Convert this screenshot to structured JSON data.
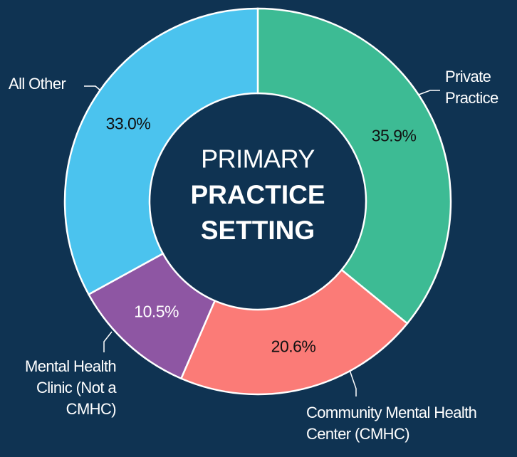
{
  "chart_data": {
    "type": "donut",
    "title_lines": [
      "PRIMARY",
      "PRACTICE",
      "SETTING"
    ],
    "categories": [
      "Private Practice",
      "Community Mental Health Center (CMHC)",
      "Mental Health Clinic (Not a CMHC)",
      "All Other"
    ],
    "values": [
      35.9,
      20.6,
      10.5,
      33.0
    ],
    "value_labels": [
      "35.9%",
      "20.6%",
      "10.5%",
      "33.0%"
    ],
    "colors": [
      "#3dbb94",
      "#fb7b77",
      "#8e56a3",
      "#4bc3ee"
    ]
  }
}
